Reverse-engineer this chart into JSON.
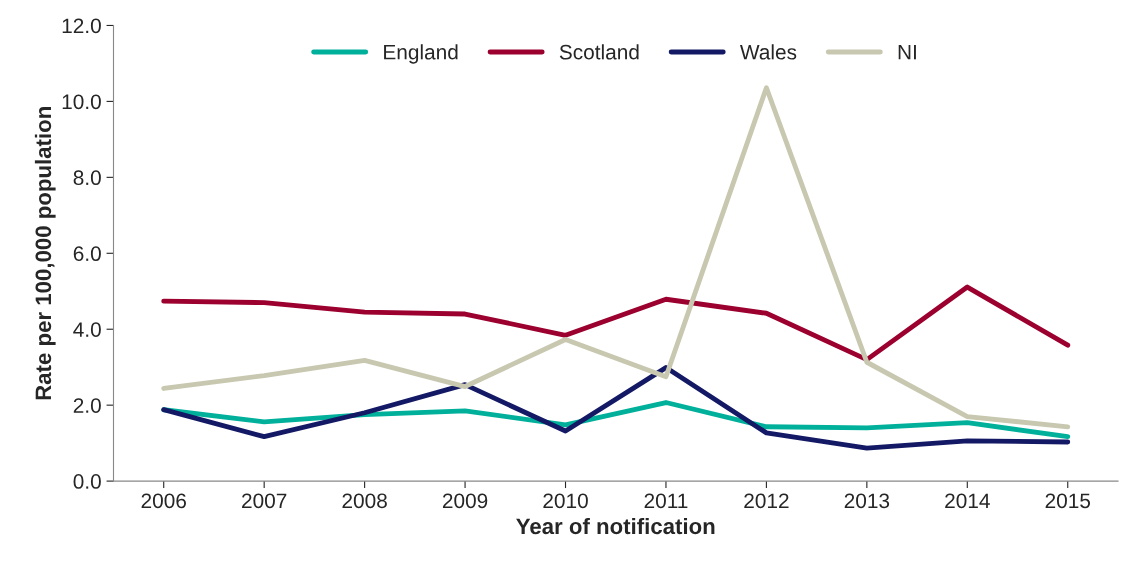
{
  "chart_data": {
    "type": "line",
    "xlabel": "Year of notification",
    "ylabel": "Rate per 100,000 population",
    "categories": [
      "2006",
      "2007",
      "2008",
      "2009",
      "2010",
      "2011",
      "2012",
      "2013",
      "2014",
      "2015"
    ],
    "series": [
      {
        "name": "England",
        "color": "#00b09b",
        "values": [
          1.88,
          1.56,
          1.75,
          1.85,
          1.48,
          2.07,
          1.43,
          1.4,
          1.54,
          1.17
        ]
      },
      {
        "name": "Scotland",
        "color": "#9b002f",
        "values": [
          4.74,
          4.7,
          4.45,
          4.4,
          3.84,
          4.79,
          4.42,
          3.2,
          5.11,
          3.58
        ]
      },
      {
        "name": "Wales",
        "color": "#141965",
        "values": [
          1.88,
          1.17,
          1.8,
          2.54,
          1.32,
          2.99,
          1.27,
          0.87,
          1.06,
          1.03
        ]
      },
      {
        "name": "NI",
        "color": "#c8c8b0",
        "values": [
          2.44,
          2.78,
          3.18,
          2.49,
          3.73,
          2.75,
          10.36,
          3.13,
          1.7,
          1.43
        ]
      }
    ],
    "ylim": [
      0,
      12
    ],
    "yticks": [
      {
        "value": 0,
        "label": "0.0"
      },
      {
        "value": 2,
        "label": "2.0"
      },
      {
        "value": 4,
        "label": "4.0"
      },
      {
        "value": 6,
        "label": "6.0"
      },
      {
        "value": 8,
        "label": "8.0"
      },
      {
        "value": 10,
        "label": "10.0"
      },
      {
        "value": 12,
        "label": "12.0"
      }
    ],
    "legend": "top",
    "grid": false,
    "marker": "none",
    "line_style": "solid"
  }
}
